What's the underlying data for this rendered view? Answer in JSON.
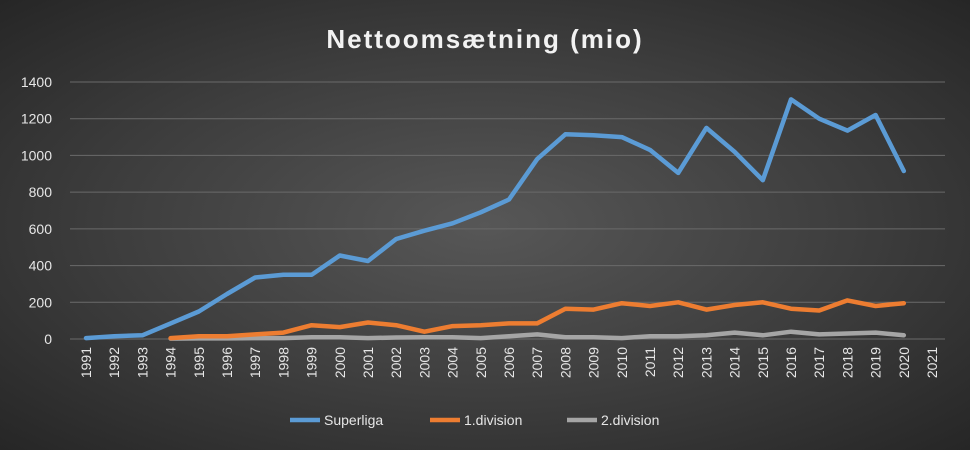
{
  "chart_data": {
    "type": "line",
    "title": "Nettoomsætning (mio)",
    "xlabel": "",
    "ylabel": "",
    "ylim": [
      0,
      1400
    ],
    "yticks": [
      0,
      200,
      400,
      600,
      800,
      1000,
      1200,
      1400
    ],
    "grid": true,
    "legend_position": "bottom",
    "x": [
      "1991",
      "1992",
      "1993",
      "1994",
      "1995",
      "1996",
      "1997",
      "1998",
      "1999",
      "2000",
      "2001",
      "2002",
      "2003",
      "2004",
      "2005",
      "2006",
      "2007",
      "2008",
      "2009",
      "2010",
      "2011",
      "2012",
      "2013",
      "2014",
      "2015",
      "2016",
      "2017",
      "2018",
      "2019",
      "2020",
      "2021"
    ],
    "series": [
      {
        "name": "Superliga",
        "color": "#5b9bd5",
        "values": [
          5,
          15,
          20,
          85,
          150,
          245,
          335,
          350,
          350,
          455,
          425,
          545,
          590,
          630,
          690,
          760,
          980,
          1115,
          1110,
          1100,
          1030,
          905,
          1150,
          1020,
          865,
          1305,
          1200,
          1135,
          1220,
          915,
          null
        ]
      },
      {
        "name": "1.division",
        "color": "#ed7d31",
        "values": [
          null,
          null,
          null,
          5,
          15,
          15,
          25,
          35,
          75,
          65,
          90,
          75,
          40,
          70,
          75,
          85,
          85,
          165,
          160,
          195,
          180,
          200,
          160,
          185,
          200,
          165,
          155,
          210,
          180,
          195,
          null
        ]
      },
      {
        "name": "2.division",
        "color": "#a5a5a5",
        "values": [
          null,
          null,
          null,
          2,
          3,
          3,
          5,
          5,
          10,
          10,
          5,
          8,
          10,
          10,
          5,
          15,
          25,
          10,
          10,
          5,
          15,
          15,
          20,
          35,
          20,
          40,
          25,
          30,
          35,
          20,
          null
        ]
      }
    ]
  }
}
